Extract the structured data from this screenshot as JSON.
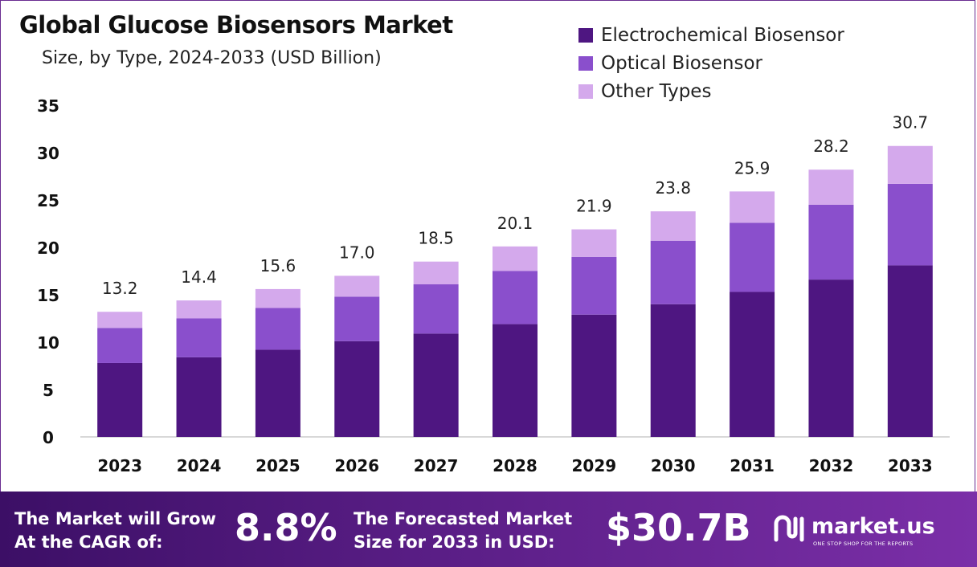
{
  "colors": {
    "electrochemical": "#4e1681",
    "optical": "#8a4fcc",
    "other": "#d4a9ec"
  },
  "header": {
    "title": "Global Glucose Biosensors Market",
    "subtitle": "Size, by Type, 2024-2033 (USD Billion)"
  },
  "legend": {
    "items": [
      {
        "label": "Electrochemical Biosensor",
        "color": "#4e1681"
      },
      {
        "label": "Optical Biosensor",
        "color": "#8a4fcc"
      },
      {
        "label": "Other Types",
        "color": "#d4a9ec"
      }
    ]
  },
  "chart_data": {
    "type": "bar",
    "stacked": true,
    "title": "Global Glucose Biosensors Market",
    "subtitle": "Size, by Type, 2024-2033 (USD Billion)",
    "categories": [
      "2023",
      "2024",
      "2025",
      "2026",
      "2027",
      "2028",
      "2029",
      "2030",
      "2031",
      "2032",
      "2033"
    ],
    "series": [
      {
        "name": "Electrochemical Biosensor",
        "values": [
          7.8,
          8.4,
          9.2,
          10.1,
          10.9,
          11.9,
          12.9,
          14.0,
          15.3,
          16.6,
          18.1
        ]
      },
      {
        "name": "Optical Biosensor",
        "values": [
          3.7,
          4.1,
          4.4,
          4.7,
          5.2,
          5.6,
          6.1,
          6.7,
          7.3,
          7.9,
          8.6
        ]
      },
      {
        "name": "Other Types",
        "values": [
          1.7,
          1.9,
          2.0,
          2.2,
          2.4,
          2.6,
          2.9,
          3.1,
          3.3,
          3.7,
          4.0
        ]
      }
    ],
    "totals": [
      "13.2",
      "14.4",
      "15.6",
      "17.0",
      "18.5",
      "20.1",
      "21.9",
      "23.8",
      "25.9",
      "28.2",
      "30.7"
    ],
    "ylim": [
      0,
      35
    ],
    "yticks": [
      0,
      5,
      10,
      15,
      20,
      25,
      30,
      35
    ],
    "grid": false,
    "legend_position": "top-right"
  },
  "footer": {
    "cagr_label_line1": "The Market will Grow",
    "cagr_label_line2": "At the CAGR of:",
    "cagr_value": "8.8%",
    "forecast_label_line1": "The Forecasted Market",
    "forecast_label_line2": "Size for 2033 in USD:",
    "forecast_value": "$30.7B",
    "brand_name": "market.us",
    "brand_tagline": "ONE STOP SHOP FOR THE REPORTS"
  }
}
